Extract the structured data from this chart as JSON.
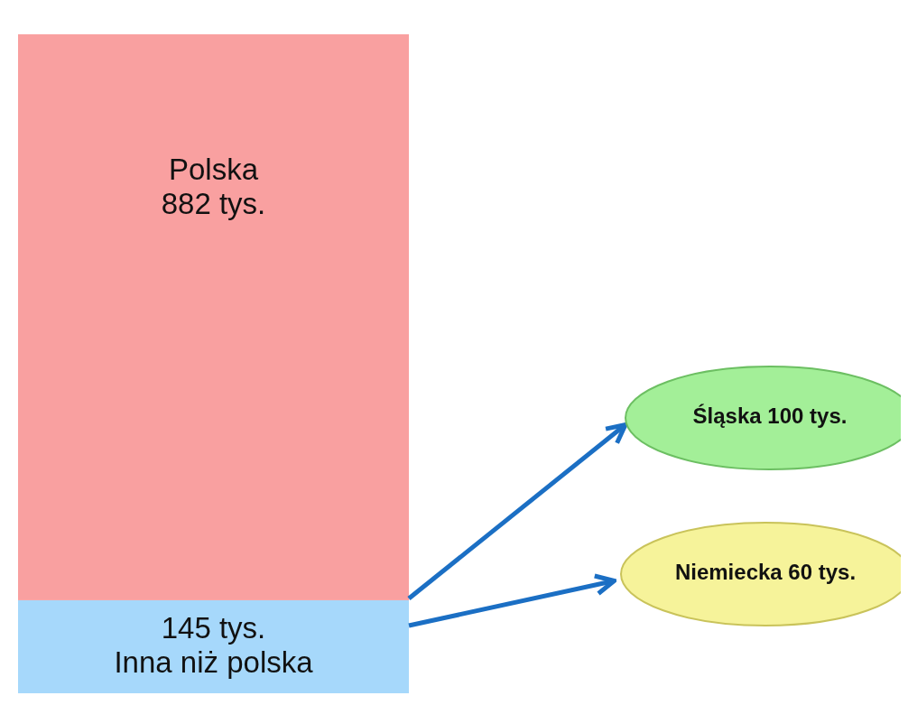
{
  "chart_data": {
    "type": "bar",
    "stacked": true,
    "categories": [
      null
    ],
    "series": [
      {
        "name": "Inna niż polska",
        "color": "#a6d8fb",
        "values": [
          145
        ],
        "value_labels": [
          "145 tys."
        ]
      },
      {
        "name": "Polska",
        "color": "#f9a0a0",
        "values": [
          882
        ],
        "value_labels": [
          "882 tys."
        ]
      }
    ],
    "annotations": [
      "Śląska 100 tys.",
      "Niemiecka 60 tys."
    ]
  }
}
